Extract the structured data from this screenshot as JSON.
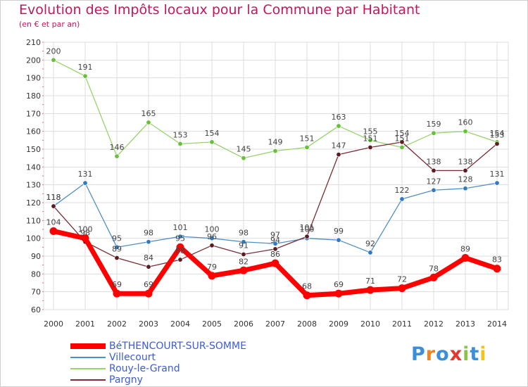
{
  "title": "Evolution des Impôts locaux pour la Commune par Habitant",
  "subtitle": "(en € et par an)",
  "logo": {
    "text": "Proxiti",
    "colors": [
      "#3a8fd8",
      "#f5821f",
      "#3a8fd8",
      "#e6362b",
      "#8bc34a",
      "#3a8fd8",
      "#f5c218"
    ]
  },
  "chart_data": {
    "type": "line",
    "title": "Evolution des Impôts locaux pour la Commune par Habitant",
    "subtitle": "(en € et par an)",
    "x": [
      "2000",
      "2001",
      "2002",
      "2003",
      "2004",
      "2005",
      "2006",
      "2007",
      "2008",
      "2009",
      "2010",
      "2011",
      "2012",
      "2013",
      "2014"
    ],
    "ylim": [
      60,
      210
    ],
    "yticks": [
      60,
      70,
      80,
      90,
      100,
      110,
      120,
      130,
      140,
      150,
      160,
      170,
      180,
      190,
      200,
      210
    ],
    "grid": true,
    "legend_position": "bottom-left",
    "series": [
      {
        "name": "Villecourt",
        "color": "#4f8fc8",
        "marker": "#2f7ac0",
        "values": [
          118,
          131,
          95,
          98,
          101,
          100,
          98,
          97,
          100,
          99,
          92,
          122,
          127,
          128,
          131
        ]
      },
      {
        "name": "Rouy-le-Grand",
        "color": "#99d36c",
        "marker": "#66c03a",
        "values": [
          200,
          191,
          146,
          165,
          153,
          154,
          145,
          149,
          151,
          163,
          155,
          151,
          159,
          160,
          154
        ]
      },
      {
        "name": "Pargny",
        "color": "#7b2c36",
        "marker": "#5c1a22",
        "values": [
          118,
          98,
          89,
          84,
          88,
          96,
          91,
          94,
          101,
          147,
          151,
          154,
          138,
          138,
          153
        ]
      },
      {
        "name": "BéTHENCOURT-SUR-SOMME",
        "color": "#ff0000",
        "marker": "#ff0000",
        "values": [
          104,
          100,
          69,
          69,
          95,
          79,
          82,
          86,
          68,
          69,
          71,
          72,
          78,
          89,
          83
        ]
      }
    ],
    "legend_order": [
      "BéTHENCOURT-SUR-SOMME",
      "Villecourt",
      "Rouy-le-Grand",
      "Pargny"
    ]
  }
}
